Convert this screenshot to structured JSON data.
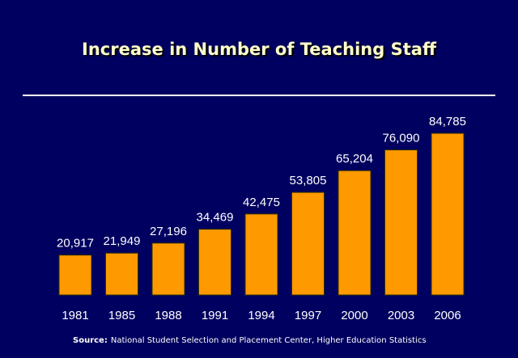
{
  "chart_data": {
    "type": "bar",
    "title": "Increase in Number of Teaching Staff",
    "categories": [
      "1981",
      "1985",
      "1988",
      "1991",
      "1994",
      "1997",
      "2000",
      "2003",
      "2006"
    ],
    "values": [
      20917,
      21949,
      27196,
      34469,
      42475,
      53805,
      65204,
      76090,
      84785
    ],
    "value_labels": [
      "20,917",
      "21,949",
      "27,196",
      "34,469",
      "42,475",
      "53,805",
      "65,204",
      "76,090",
      "84,785"
    ],
    "color": "#ff9900",
    "source_label": "Source:",
    "source": "National Student Selection and Placement Center, Higher Education Statistics"
  }
}
